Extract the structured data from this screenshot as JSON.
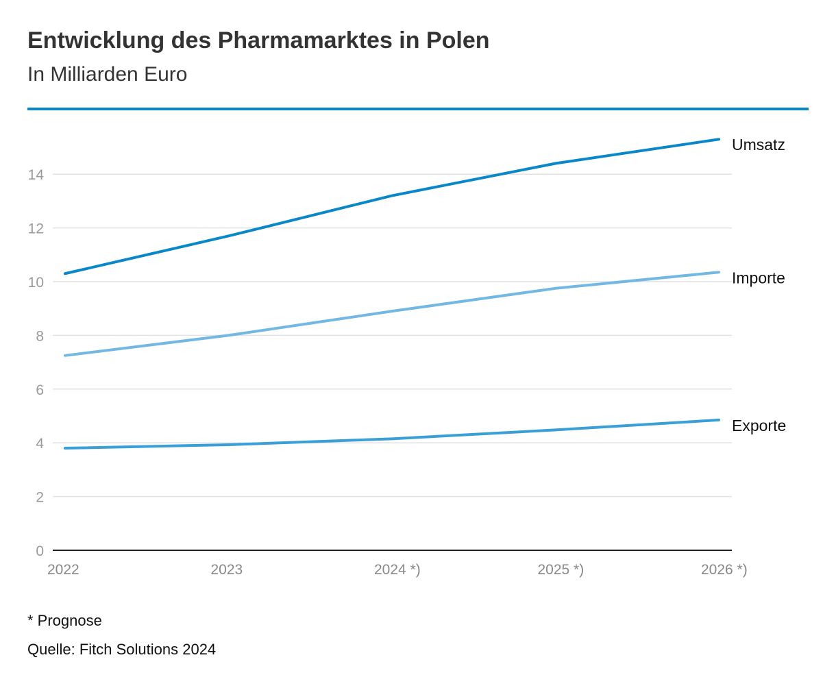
{
  "colors": {
    "accent": "#0a87c9",
    "umsatz": "#0a87c9",
    "importe": "#72b8e2",
    "exporte": "#3a9fd6",
    "grid": "#e1e1e1",
    "tick_text": "#9a9a9a",
    "axis": "#222222"
  },
  "chart_data": {
    "type": "line",
    "title": "Entwicklung des Pharmamarktes in Polen",
    "subtitle": "In Milliarden Euro",
    "categories": [
      "2022",
      "2023",
      "2024 *)",
      "2025 *)",
      "2026 *)"
    ],
    "series": [
      {
        "name": "Umsatz",
        "color_key": "umsatz",
        "values": [
          10.3,
          11.7,
          13.2,
          14.4,
          15.3
        ]
      },
      {
        "name": "Importe",
        "color_key": "importe",
        "values": [
          7.25,
          8.0,
          8.9,
          9.75,
          10.35
        ]
      },
      {
        "name": "Exporte",
        "color_key": "exporte",
        "values": [
          3.8,
          3.93,
          4.15,
          4.48,
          4.85
        ]
      }
    ],
    "y_ticks": [
      0,
      2,
      4,
      6,
      8,
      10,
      12,
      14
    ],
    "ylim": [
      0,
      15.3
    ],
    "grid": true,
    "legend": "direct labels at line ends"
  },
  "footnote": "* Prognose",
  "source": "Quelle: Fitch Solutions 2024"
}
